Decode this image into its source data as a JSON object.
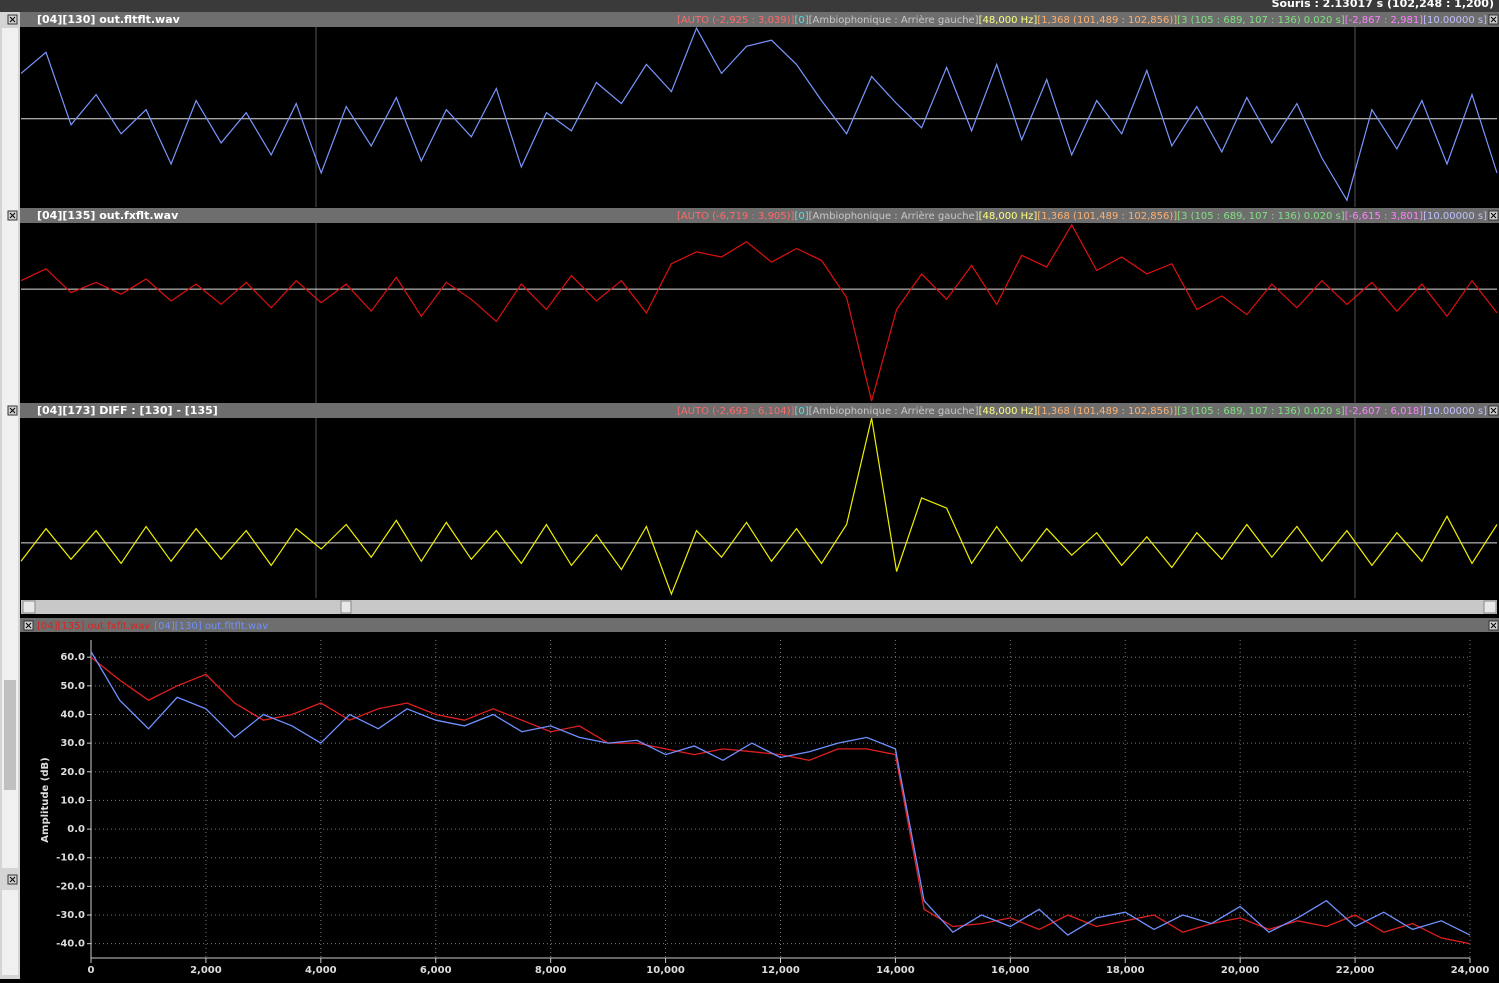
{
  "status_bar": {
    "text": "Souris : 2.13017 s (102,248 : 1,200)"
  },
  "chart_data": [
    {
      "type": "line",
      "title": "[04][130] out.fltflt.wav",
      "color": "#7a96ff",
      "ylim": [
        -2925,
        3039
      ],
      "info": [
        {
          "text": "[AUTO (-2,925 : 3,039)]",
          "color": "#ff6a6a"
        },
        {
          "text": "[0]",
          "color": "#5ee0e0"
        },
        {
          "text": "[Ambiophonique : Arrière gauche]",
          "color": "#c8c8c8"
        },
        {
          "text": "[48,000 Hz]",
          "color": "#ffff80"
        },
        {
          "text": "[1,368 (101,489 : 102,856)]",
          "color": "#ffb070"
        },
        {
          "text": "[3 (105 : 689, 107 : 136) 0.020 s]",
          "color": "#80e080"
        },
        {
          "text": "[-2,867 : 2,981]",
          "color": "#ff80ff"
        },
        {
          "text": "[10.00000 s]",
          "color": "#c0c0ff"
        }
      ],
      "values": [
        1500,
        2200,
        -200,
        800,
        -500,
        300,
        -1500,
        600,
        -800,
        200,
        -1200,
        500,
        -1800,
        400,
        -900,
        700,
        -1400,
        300,
        -600,
        1000,
        -1600,
        200,
        -400,
        1200,
        500,
        1800,
        900,
        3000,
        1500,
        2400,
        2600,
        1800,
        600,
        -500,
        1400,
        500,
        -300,
        1700,
        -400,
        1800,
        -700,
        1300,
        -1200,
        600,
        -500,
        1600,
        -900,
        400,
        -1100,
        700,
        -800,
        500,
        -1300,
        -2700,
        300,
        -1000,
        600,
        -1500,
        800,
        -1800
      ]
    },
    {
      "type": "line",
      "title": "[04][135] out.fxflt.wav",
      "color": "#e01010",
      "ylim": [
        -6719,
        3905
      ],
      "info": [
        {
          "text": "[AUTO (-6,719 : 3,905)]",
          "color": "#ff6a6a"
        },
        {
          "text": "[0]",
          "color": "#5ee0e0"
        },
        {
          "text": "[Ambiophonique : Arrière gauche]",
          "color": "#c8c8c8"
        },
        {
          "text": "[48,000 Hz]",
          "color": "#ffff80"
        },
        {
          "text": "[1,368 (101,489 : 102,856)]",
          "color": "#ffb070"
        },
        {
          "text": "[3 (105 : 689, 107 : 136) 0.020 s]",
          "color": "#80e080"
        },
        {
          "text": "[-6,615 : 3,801]",
          "color": "#ff80ff"
        },
        {
          "text": "[10.00000 s]",
          "color": "#c0c0ff"
        }
      ],
      "values": [
        500,
        1200,
        -200,
        400,
        -300,
        600,
        -700,
        300,
        -900,
        400,
        -1100,
        500,
        -800,
        300,
        -1300,
        700,
        -1600,
        400,
        -600,
        -1900,
        300,
        -1200,
        800,
        -700,
        500,
        -1400,
        1500,
        2200,
        1900,
        2800,
        1600,
        2400,
        1700,
        -500,
        -6600,
        -1200,
        900,
        -600,
        1400,
        -900,
        2000,
        1300,
        3800,
        1100,
        1900,
        900,
        1500,
        -1200,
        -400,
        -1500,
        300,
        -1100,
        500,
        -900,
        400,
        -1300,
        300,
        -1600,
        500,
        -1400
      ]
    },
    {
      "type": "line",
      "title": "[04][173] DIFF : [130] - [135]",
      "color": "#f0f000",
      "ylim": [
        -2693,
        6104
      ],
      "info": [
        {
          "text": "[AUTO (-2,693 : 6,104)]",
          "color": "#ff6a6a"
        },
        {
          "text": "[0]",
          "color": "#5ee0e0"
        },
        {
          "text": "[Ambiophonique : Arrière gauche]",
          "color": "#c8c8c8"
        },
        {
          "text": "[48,000 Hz]",
          "color": "#ffff80"
        },
        {
          "text": "[1,368 (101,489 : 102,856)]",
          "color": "#ffb070"
        },
        {
          "text": "[3 (105 : 689, 107 : 136) 0.020 s]",
          "color": "#80e080"
        },
        {
          "text": "[-2,607 : 6,018]",
          "color": "#ff80ff"
        },
        {
          "text": "[10.00000 s]",
          "color": "#c0c0ff"
        }
      ],
      "values": [
        -900,
        700,
        -800,
        600,
        -1000,
        800,
        -900,
        700,
        -800,
        600,
        -1100,
        700,
        -300,
        900,
        -700,
        1100,
        -900,
        1000,
        -800,
        600,
        -1000,
        900,
        -1100,
        400,
        -1300,
        800,
        -2500,
        600,
        -700,
        1000,
        -900,
        700,
        -1000,
        900,
        6100,
        -1400,
        2200,
        1700,
        -1000,
        800,
        -900,
        700,
        -600,
        500,
        -1100,
        300,
        -1200,
        500,
        -800,
        900,
        -700,
        800,
        -900,
        600,
        -1100,
        500,
        -900,
        1300,
        -1000,
        900
      ]
    },
    {
      "type": "line",
      "ylabel": "Amplitude (dB)",
      "grid": true,
      "xlim": [
        0,
        24000
      ],
      "ylim": [
        -45,
        66
      ],
      "xticks": [
        0,
        {
          "value": 2000,
          "label": "2,000"
        },
        {
          "value": 4000,
          "label": "4,000"
        },
        {
          "value": 6000,
          "label": "6,000"
        },
        {
          "value": 8000,
          "label": "8,000"
        },
        {
          "value": 10000,
          "label": "10,000"
        },
        {
          "value": 12000,
          "label": "12,000"
        },
        {
          "value": 14000,
          "label": "14,000"
        },
        {
          "value": 16000,
          "label": "16,000"
        },
        {
          "value": 18000,
          "label": "18,000"
        },
        {
          "value": 20000,
          "label": "20,000"
        },
        {
          "value": 22000,
          "label": "22,000"
        },
        {
          "value": 24000,
          "label": "24,000"
        }
      ],
      "yticks": [
        {
          "value": 60,
          "label": "60.0"
        },
        {
          "value": 50,
          "label": "50.0"
        },
        {
          "value": 40,
          "label": "40.0"
        },
        {
          "value": 30,
          "label": "30.0"
        },
        {
          "value": 20,
          "label": "20.0"
        },
        {
          "value": 10,
          "label": "10.0"
        },
        {
          "value": 0,
          "label": "0.0"
        },
        {
          "value": -10,
          "label": "-10.0"
        },
        {
          "value": -20,
          "label": "-20.0"
        },
        {
          "value": -30,
          "label": "-30.0"
        },
        {
          "value": -40,
          "label": "-40.0"
        }
      ],
      "x": [
        0,
        500,
        1000,
        1500,
        2000,
        2500,
        3000,
        3500,
        4000,
        4500,
        5000,
        5500,
        6000,
        6500,
        7000,
        7500,
        8000,
        8500,
        9000,
        9500,
        10000,
        10500,
        11000,
        11500,
        12000,
        12500,
        13000,
        13500,
        14000,
        14500,
        15000,
        15500,
        16000,
        16500,
        17000,
        17500,
        18000,
        18500,
        19000,
        19500,
        20000,
        20500,
        21000,
        21500,
        22000,
        22500,
        23000,
        23500,
        24000
      ],
      "series": [
        {
          "name": "[04][135] out.fxflt.wav",
          "color": "#e02020",
          "values": [
            60,
            52,
            45,
            50,
            54,
            44,
            38,
            40,
            44,
            38,
            42,
            44,
            40,
            38,
            42,
            38,
            34,
            36,
            30,
            30,
            28,
            26,
            28,
            27,
            26,
            24,
            28,
            28,
            26,
            -28,
            -34,
            -33,
            -31,
            -35,
            -30,
            -34,
            -32,
            -30,
            -36,
            -33,
            -31,
            -35,
            -32,
            -34,
            -30,
            -36,
            -33,
            -38,
            -40
          ]
        },
        {
          "name": "[04][130] out.fltflt.wav",
          "color": "#7090ff",
          "values": [
            62,
            45,
            35,
            46,
            42,
            32,
            40,
            36,
            30,
            40,
            35,
            42,
            38,
            36,
            40,
            34,
            36,
            32,
            30,
            31,
            26,
            29,
            24,
            30,
            25,
            27,
            30,
            32,
            28,
            -25,
            -36,
            -30,
            -34,
            -28,
            -37,
            -31,
            -29,
            -35,
            -30,
            -33,
            -27,
            -36,
            -31,
            -25,
            -34,
            -29,
            -35,
            -32,
            -37
          ]
        }
      ]
    }
  ]
}
